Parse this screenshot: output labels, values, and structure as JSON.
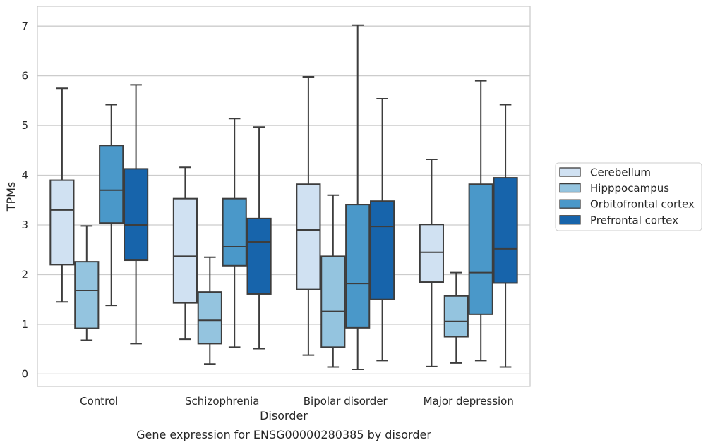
{
  "caption": "Gene expression for ENSG00000280385 by disorder",
  "chart_data": {
    "type": "box",
    "xlabel": "Disorder",
    "ylabel": "TPMs",
    "ylim": [
      -0.25,
      7.4
    ],
    "yticks": [
      0,
      1,
      2,
      3,
      4,
      5,
      6,
      7
    ],
    "grid": "horizontal",
    "legend_position": "right",
    "categories": [
      "Control",
      "Schizophrenia",
      "Bipolar disorder",
      "Major depression"
    ],
    "series": [
      {
        "name": "Cerebellum",
        "color": "#d0e1f2",
        "boxes": [
          {
            "whisker_low": 1.45,
            "q1": 2.2,
            "median": 3.3,
            "q3": 3.9,
            "whisker_high": 5.75
          },
          {
            "whisker_low": 0.7,
            "q1": 1.43,
            "median": 2.37,
            "q3": 3.53,
            "whisker_high": 4.16
          },
          {
            "whisker_low": 0.38,
            "q1": 1.7,
            "median": 2.9,
            "q3": 3.82,
            "whisker_high": 5.98
          },
          {
            "whisker_low": 0.15,
            "q1": 1.85,
            "median": 2.45,
            "q3": 3.01,
            "whisker_high": 4.32
          }
        ]
      },
      {
        "name": "Hipppocampus",
        "color": "#94c4df",
        "boxes": [
          {
            "whisker_low": 0.68,
            "q1": 0.92,
            "median": 1.68,
            "q3": 2.26,
            "whisker_high": 2.98
          },
          {
            "whisker_low": 0.2,
            "q1": 0.61,
            "median": 1.08,
            "q3": 1.65,
            "whisker_high": 2.35
          },
          {
            "whisker_low": 0.14,
            "q1": 0.54,
            "median": 1.26,
            "q3": 2.37,
            "whisker_high": 3.6
          },
          {
            "whisker_low": 0.22,
            "q1": 0.75,
            "median": 1.06,
            "q3": 1.57,
            "whisker_high": 2.04
          }
        ]
      },
      {
        "name": "Orbitofrontal cortex",
        "color": "#4a98c9",
        "boxes": [
          {
            "whisker_low": 1.38,
            "q1": 3.04,
            "median": 3.7,
            "q3": 4.6,
            "whisker_high": 5.42
          },
          {
            "whisker_low": 0.54,
            "q1": 2.18,
            "median": 2.56,
            "q3": 3.53,
            "whisker_high": 5.14
          },
          {
            "whisker_low": 0.09,
            "q1": 0.93,
            "median": 1.82,
            "q3": 3.41,
            "whisker_high": 7.02
          },
          {
            "whisker_low": 0.27,
            "q1": 1.2,
            "median": 2.04,
            "q3": 3.82,
            "whisker_high": 5.9
          }
        ]
      },
      {
        "name": "Prefrontal cortex",
        "color": "#1764ab",
        "boxes": [
          {
            "whisker_low": 0.61,
            "q1": 2.29,
            "median": 3.0,
            "q3": 4.13,
            "whisker_high": 5.82
          },
          {
            "whisker_low": 0.51,
            "q1": 1.61,
            "median": 2.66,
            "q3": 3.13,
            "whisker_high": 4.97
          },
          {
            "whisker_low": 0.27,
            "q1": 1.5,
            "median": 2.97,
            "q3": 3.48,
            "whisker_high": 5.54
          },
          {
            "whisker_low": 0.14,
            "q1": 1.83,
            "median": 2.52,
            "q3": 3.95,
            "whisker_high": 5.42
          }
        ]
      }
    ]
  }
}
